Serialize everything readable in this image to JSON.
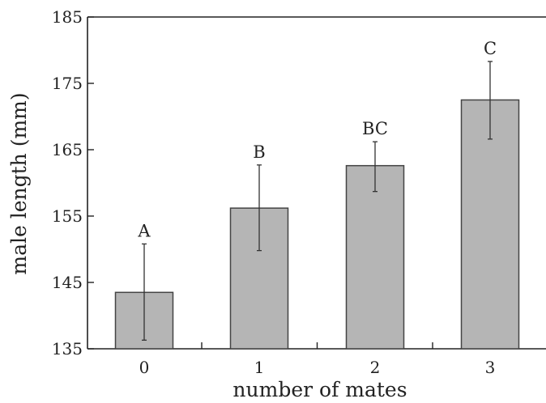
{
  "chart_data": {
    "type": "bar",
    "title": "",
    "xlabel": "number of mates",
    "ylabel": "male length (mm)",
    "categories": [
      "0",
      "1",
      "2",
      "3"
    ],
    "values": [
      143.5,
      156.2,
      162.6,
      172.5
    ],
    "error_low": [
      136.3,
      149.8,
      158.7,
      166.6
    ],
    "error_high": [
      150.8,
      162.7,
      166.2,
      178.3
    ],
    "significance_labels": [
      "A",
      "B",
      "BC",
      "C"
    ],
    "ylim": [
      135,
      185
    ],
    "yticks": [
      "135",
      "145",
      "155",
      "165",
      "175",
      "185"
    ],
    "grid": false,
    "legend": "none",
    "bar_color": "#b5b5b5",
    "bar_edge_color": "#444444"
  }
}
